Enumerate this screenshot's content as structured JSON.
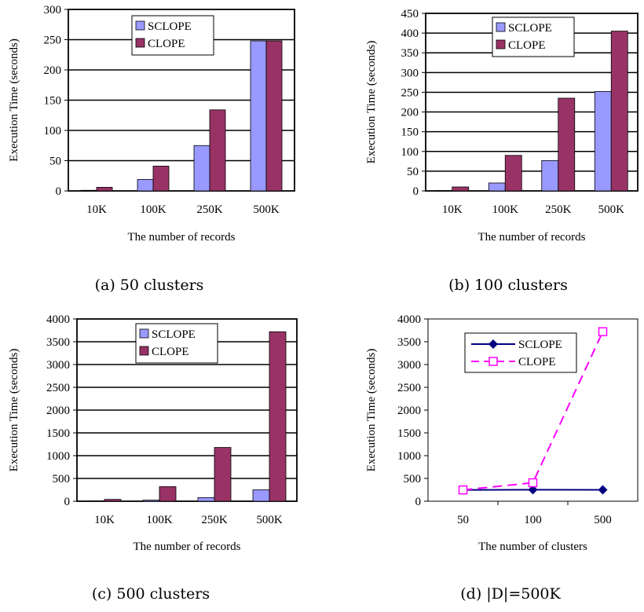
{
  "chart_data": [
    {
      "type": "bar",
      "caption": "(a) 50 clusters",
      "categories": [
        "10K",
        "100K",
        "250K",
        "500K"
      ],
      "series": [
        {
          "name": "SCLOPE",
          "values": [
            1,
            19,
            75,
            248
          ]
        },
        {
          "name": "CLOPE",
          "values": [
            6,
            41,
            134,
            248
          ]
        }
      ],
      "xlabel": "The number of records",
      "ylabel": "Execution Time (seconds)",
      "ylim": [
        0,
        300
      ],
      "yticks": [
        0,
        50,
        100,
        150,
        200,
        250,
        300
      ],
      "grid": true,
      "legend": "top-center"
    },
    {
      "type": "bar",
      "caption": "(b) 100 clusters",
      "categories": [
        "10K",
        "100K",
        "250K",
        "500K"
      ],
      "series": [
        {
          "name": "SCLOPE",
          "values": [
            1,
            20,
            77,
            252
          ]
        },
        {
          "name": "CLOPE",
          "values": [
            10,
            90,
            235,
            405
          ]
        }
      ],
      "xlabel": "The number of records",
      "ylabel": "Execution Time (seconds)",
      "ylim": [
        0,
        450
      ],
      "yticks": [
        0,
        50,
        100,
        150,
        200,
        250,
        300,
        350,
        400,
        450
      ],
      "grid": true,
      "legend": "top-center"
    },
    {
      "type": "bar",
      "caption": "(c) 500 clusters",
      "categories": [
        "10K",
        "100K",
        "250K",
        "500K"
      ],
      "series": [
        {
          "name": "SCLOPE",
          "values": [
            5,
            25,
            80,
            250
          ]
        },
        {
          "name": "CLOPE",
          "values": [
            40,
            320,
            1180,
            3720
          ]
        }
      ],
      "xlabel": "The number of records",
      "ylabel": "Execution Time (seconds)",
      "ylim": [
        0,
        4000
      ],
      "yticks": [
        0,
        500,
        1000,
        1500,
        2000,
        2500,
        3000,
        3500,
        4000
      ],
      "grid": true,
      "legend": "top-center"
    },
    {
      "type": "line",
      "caption": "(d) |D|=500K",
      "categories": [
        "50",
        "100",
        "500"
      ],
      "series": [
        {
          "name": "SCLOPE",
          "values": [
            248,
            252,
            250
          ]
        },
        {
          "name": "CLOPE",
          "values": [
            248,
            405,
            3720
          ]
        }
      ],
      "xlabel": "The number of clusters",
      "ylabel": "Execution Time (seconds)",
      "ylim": [
        0,
        4000
      ],
      "yticks": [
        0,
        500,
        1000,
        1500,
        2000,
        2500,
        3000,
        3500,
        4000
      ],
      "grid": false,
      "legend": "top-center"
    }
  ],
  "colors": {
    "sclope_bar": "#9999ff",
    "clope_bar": "#993366",
    "sclope_line": "#000080",
    "clope_line": "#ff00ff"
  }
}
